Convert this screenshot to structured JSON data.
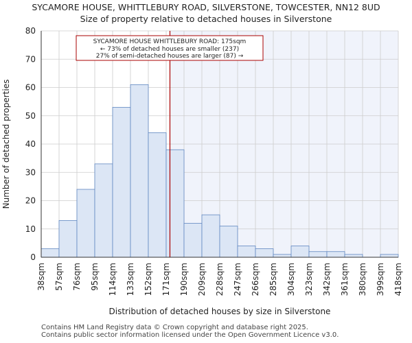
{
  "titles": {
    "line1": "SYCAMORE HOUSE, WHITTLEBURY ROAD, SILVERSTONE, TOWCESTER, NN12 8UD",
    "line2": "Size of property relative to detached houses in Silverstone"
  },
  "footer": {
    "line1": "Contains HM Land Registry data © Crown copyright and database right 2025.",
    "line2": "Contains public sector information licensed under the Open Government Licence v3.0."
  },
  "colors": {
    "bar_fill": "#dce6f5",
    "bar_stroke": "#5f86c0",
    "highlight_bg": "#f0f3fb",
    "marker": "#aa0000",
    "grid": "#cccccc"
  },
  "chart_data": {
    "type": "bar",
    "title": "Size of property relative to detached houses in Silverstone",
    "xlabel": "Distribution of detached houses by size in Silverstone",
    "ylabel": "Number of detached properties",
    "ylim": [
      0,
      80
    ],
    "yticks": [
      0,
      10,
      20,
      30,
      40,
      50,
      60,
      70,
      80
    ],
    "bin_edges": [
      38,
      57,
      76,
      95,
      114,
      133,
      152,
      171,
      190,
      209,
      228,
      247,
      266,
      285,
      304,
      323,
      342,
      361,
      380,
      399,
      418
    ],
    "x_tick_labels": [
      "38sqm",
      "57sqm",
      "76sqm",
      "95sqm",
      "114sqm",
      "133sqm",
      "152sqm",
      "171sqm",
      "190sqm",
      "209sqm",
      "228sqm",
      "247sqm",
      "266sqm",
      "285sqm",
      "304sqm",
      "323sqm",
      "342sqm",
      "361sqm",
      "380sqm",
      "399sqm",
      "418sqm"
    ],
    "values": [
      3,
      13,
      24,
      33,
      53,
      61,
      44,
      38,
      12,
      15,
      11,
      4,
      3,
      1,
      4,
      2,
      2,
      1,
      0,
      1
    ],
    "marker_value": 175,
    "grid": true,
    "annotation": {
      "line1": "SYCAMORE HOUSE WHITTLEBURY ROAD: 175sqm",
      "line2": "← 73% of detached houses are smaller (237)",
      "line3": "27% of semi-detached houses are larger (87) →"
    }
  }
}
